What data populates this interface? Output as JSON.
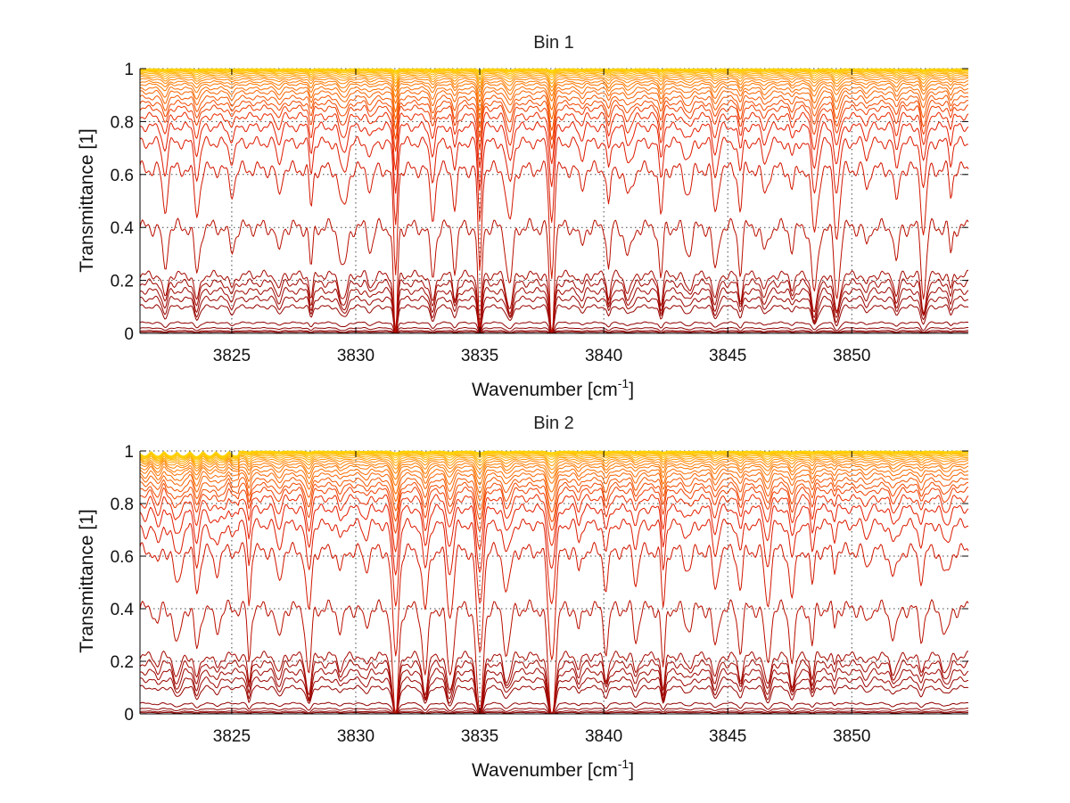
{
  "chart_data": [
    {
      "type": "line",
      "title": "Bin 1",
      "xlabel": "Wavenumber [cm",
      "xlabel_sup": "-1",
      "xlabel_end": "]",
      "ylabel": "Transmittance [1]",
      "xlim": [
        3821.3,
        3854.7
      ],
      "ylim": [
        0,
        1
      ],
      "xticks": [
        "3825",
        "3830",
        "3835",
        "3840",
        "3845",
        "3850"
      ],
      "yticks": [
        "0",
        "0.2",
        "0.4",
        "0.6",
        "0.8",
        "1"
      ],
      "grid": true,
      "series_count": 32,
      "series_levels": [
        0.005,
        0.01,
        0.02,
        0.04,
        0.1,
        0.13,
        0.16,
        0.19,
        0.22,
        0.4,
        0.62,
        0.72,
        0.78,
        0.82,
        0.85,
        0.87,
        0.89,
        0.91,
        0.925,
        0.94,
        0.95,
        0.96,
        0.968,
        0.975,
        0.981,
        0.986,
        0.99,
        0.993,
        0.995,
        0.997,
        0.998,
        0.999
      ],
      "absorption_lines_cm-1": [
        3822.3,
        3823.6,
        3825.0,
        3826.9,
        3828.2,
        3829.5,
        3830.6,
        3831.6,
        3833.1,
        3834.0,
        3835.0,
        3836.2,
        3837.9,
        3839.1,
        3840.2,
        3841.0,
        3842.3,
        3843.4,
        3844.5,
        3845.5,
        3846.5,
        3847.6,
        3848.5,
        3849.4,
        3850.6,
        3851.8,
        3852.9,
        3854.0
      ],
      "color_low": "#8B0000",
      "color_high": "#FFD700"
    },
    {
      "type": "line",
      "title": "Bin 2",
      "xlabel": "Wavenumber [cm",
      "xlabel_sup": "-1",
      "xlabel_end": "]",
      "ylabel": "Transmittance [1]",
      "xlim": [
        3821.3,
        3854.7
      ],
      "ylim": [
        0,
        1
      ],
      "xticks": [
        "3825",
        "3830",
        "3835",
        "3840",
        "3845",
        "3850"
      ],
      "yticks": [
        "0",
        "0.2",
        "0.4",
        "0.6",
        "0.8",
        "1"
      ],
      "grid": true,
      "series_count": 32,
      "series_levels": [
        0.005,
        0.01,
        0.02,
        0.04,
        0.1,
        0.13,
        0.16,
        0.19,
        0.22,
        0.4,
        0.62,
        0.72,
        0.78,
        0.82,
        0.85,
        0.87,
        0.89,
        0.91,
        0.925,
        0.94,
        0.95,
        0.96,
        0.968,
        0.975,
        0.981,
        0.986,
        0.99,
        0.993,
        0.995,
        0.997,
        0.998,
        0.999
      ],
      "absorption_lines_cm-1": [
        3822.0,
        3822.8,
        3823.6,
        3824.4,
        3825.7,
        3826.9,
        3828.1,
        3829.4,
        3830.4,
        3831.6,
        3832.8,
        3833.8,
        3835.0,
        3836.1,
        3837.9,
        3839.0,
        3840.1,
        3841.3,
        3842.4,
        3843.4,
        3844.5,
        3845.5,
        3846.6,
        3847.6,
        3848.4,
        3849.3,
        3850.6,
        3851.7,
        3852.8,
        3853.8
      ],
      "color_low": "#8B0000",
      "color_high": "#FFD700"
    }
  ]
}
